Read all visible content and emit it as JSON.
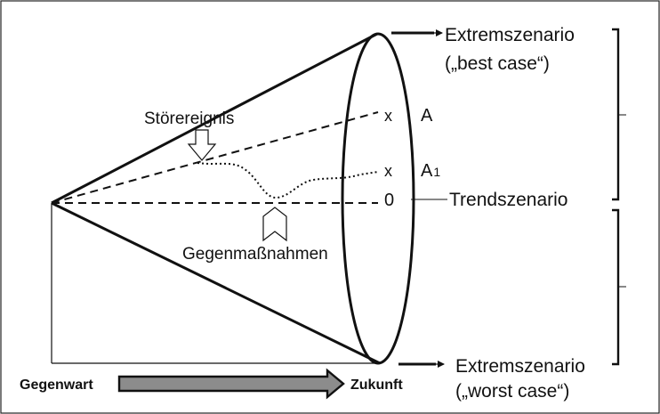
{
  "labels": {
    "best_case_title": "Extremszenario",
    "best_case_sub": "(„best case“)",
    "worst_case_title": "Extremszenario",
    "worst_case_sub": "(„worst case“)",
    "trend": "Trendszenario",
    "disturbance": "Störereignis",
    "countermeasures": "Gegenmaßnahmen",
    "present": "Gegenwart",
    "future": "Zukunft",
    "point_a_marker": "x",
    "point_a_label": "A",
    "point_a1_marker": "x",
    "point_a1_label": "A",
    "point_a1_subscript": "1",
    "trend_point_label": "0"
  }
}
